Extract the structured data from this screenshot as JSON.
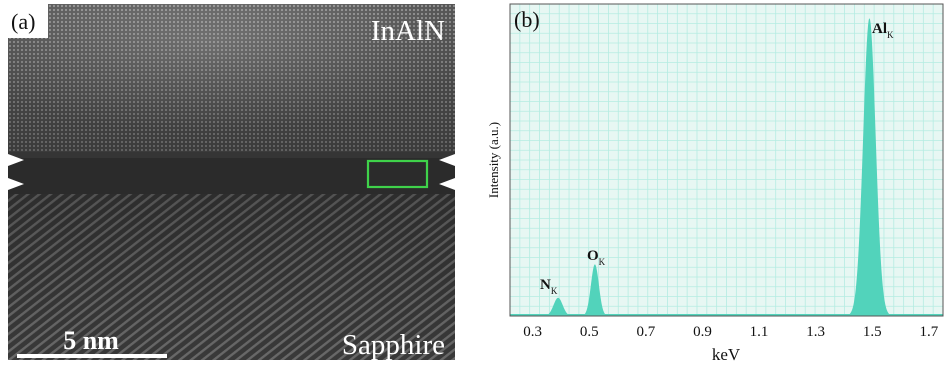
{
  "panel_a": {
    "label": "(a)",
    "top_material": "InAlN",
    "bottom_material": "Sapphire",
    "scale_bar": "5 nm",
    "colors": {
      "roi_box": "#3fd24a",
      "markers": "#ffffff"
    }
  },
  "panel_b": {
    "label": "(b)",
    "colors": {
      "fill": "#52d3bb",
      "plot_bg": "#e7f7f3",
      "grid": "#b5ece2"
    }
  },
  "chart_data": {
    "type": "area",
    "title": "",
    "xlabel": "keV",
    "ylabel": "Intensity (a.u.)",
    "xlim": [
      0.22,
      1.75
    ],
    "ylim": [
      0,
      1
    ],
    "xticks": [
      "0.3",
      "0.5",
      "0.7",
      "0.9",
      "1.1",
      "1.3",
      "1.5",
      "1.7"
    ],
    "grid": true,
    "peaks": [
      {
        "label": "N",
        "subscript": "K",
        "energy": 0.39,
        "relative_intensity": 0.06
      },
      {
        "label": "O",
        "subscript": "K",
        "energy": 0.52,
        "relative_intensity": 0.17
      },
      {
        "label": "Al",
        "subscript": "K",
        "energy": 1.49,
        "relative_intensity": 0.98
      }
    ]
  }
}
